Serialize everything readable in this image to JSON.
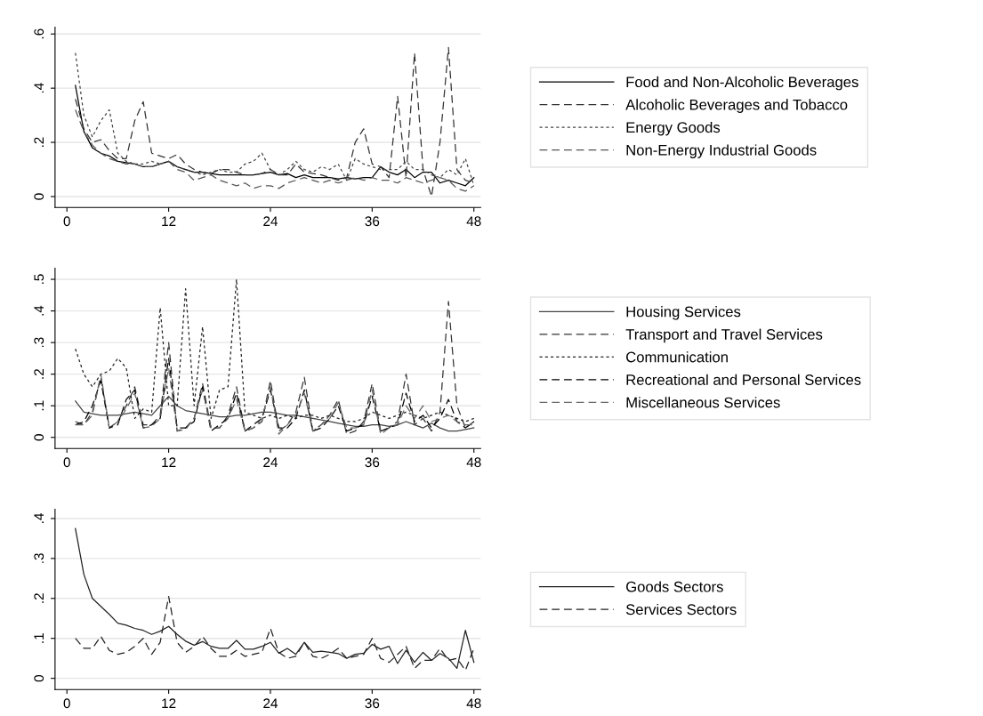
{
  "chart_data": [
    {
      "type": "line",
      "x": [
        1,
        2,
        3,
        4,
        5,
        6,
        7,
        8,
        9,
        10,
        11,
        12,
        13,
        14,
        15,
        16,
        17,
        18,
        19,
        20,
        21,
        22,
        23,
        24,
        25,
        26,
        27,
        28,
        29,
        30,
        31,
        32,
        33,
        34,
        35,
        36,
        37,
        38,
        39,
        40,
        41,
        42,
        43,
        44,
        45,
        46,
        47,
        48
      ],
      "xlim": [
        -1.4,
        48.8
      ],
      "xticks": [
        0,
        12,
        24,
        36,
        48
      ],
      "ylim": [
        -0.04,
        0.625
      ],
      "yticks": [
        {
          "value": 0,
          "label": "0"
        },
        {
          "value": 0.2,
          "label": ".2"
        },
        {
          "value": 0.4,
          "label": ".4"
        },
        {
          "value": 0.6,
          "label": ".6"
        }
      ],
      "grid": "y",
      "legend": "right",
      "series": [
        {
          "name": "Food and Non-Alcoholic Beverages",
          "color": "#000000",
          "line_style": "solid",
          "values": [
            0.41,
            0.24,
            0.18,
            0.16,
            0.15,
            0.13,
            0.125,
            0.12,
            0.11,
            0.11,
            0.12,
            0.13,
            0.11,
            0.1,
            0.09,
            0.09,
            0.085,
            0.08,
            0.08,
            0.08,
            0.08,
            0.08,
            0.085,
            0.09,
            0.08,
            0.085,
            0.07,
            0.08,
            0.07,
            0.07,
            0.07,
            0.065,
            0.07,
            0.065,
            0.07,
            0.07,
            0.11,
            0.09,
            0.08,
            0.1,
            0.07,
            0.09,
            0.09,
            0.05,
            0.06,
            0.05,
            0.04,
            0.07
          ]
        },
        {
          "name": "Alcoholic Beverages and Tobacco",
          "color": "#333333",
          "line_style": "dashed",
          "values": [
            0.36,
            0.25,
            0.2,
            0.21,
            0.17,
            0.14,
            0.14,
            0.28,
            0.35,
            0.16,
            0.15,
            0.14,
            0.155,
            0.12,
            0.1,
            0.09,
            0.085,
            0.1,
            0.1,
            0.09,
            0.08,
            0.08,
            0.085,
            0.1,
            0.08,
            0.08,
            0.12,
            0.09,
            0.085,
            0.08,
            0.07,
            0.06,
            0.07,
            0.2,
            0.25,
            0.12,
            0.11,
            0.07,
            0.37,
            0.07,
            0.53,
            0.1,
            0.0,
            0.2,
            0.55,
            0.1,
            0.06,
            0.05
          ]
        },
        {
          "name": "Energy Goods",
          "color": "#444444",
          "line_style": "dotted",
          "values": [
            0.53,
            0.3,
            0.22,
            0.28,
            0.32,
            0.16,
            0.13,
            0.12,
            0.12,
            0.13,
            0.12,
            0.13,
            0.11,
            0.1,
            0.09,
            0.08,
            0.09,
            0.1,
            0.09,
            0.09,
            0.12,
            0.13,
            0.16,
            0.1,
            0.08,
            0.1,
            0.13,
            0.1,
            0.09,
            0.11,
            0.1,
            0.12,
            0.06,
            0.14,
            0.12,
            0.11,
            0.1,
            0.1,
            0.1,
            0.13,
            0.1,
            0.1,
            0.08,
            0.07,
            0.1,
            0.08,
            0.14,
            0.04
          ]
        },
        {
          "name": "Non-Energy Industrial Goods",
          "color": "#555555",
          "line_style": "dashed",
          "values": [
            0.32,
            0.24,
            0.19,
            0.16,
            0.14,
            0.13,
            0.12,
            0.12,
            0.11,
            0.11,
            0.12,
            0.13,
            0.1,
            0.09,
            0.06,
            0.07,
            0.08,
            0.06,
            0.05,
            0.04,
            0.05,
            0.03,
            0.04,
            0.04,
            0.03,
            0.05,
            0.06,
            0.07,
            0.06,
            0.05,
            0.06,
            0.05,
            0.06,
            0.07,
            0.06,
            0.07,
            0.06,
            0.06,
            0.05,
            0.07,
            0.06,
            0.05,
            0.06,
            0.07,
            0.06,
            0.03,
            0.02,
            0.04
          ]
        }
      ]
    },
    {
      "type": "line",
      "x": [
        1,
        2,
        3,
        4,
        5,
        6,
        7,
        8,
        9,
        10,
        11,
        12,
        13,
        14,
        15,
        16,
        17,
        18,
        19,
        20,
        21,
        22,
        23,
        24,
        25,
        26,
        27,
        28,
        29,
        30,
        31,
        32,
        33,
        34,
        35,
        36,
        37,
        38,
        39,
        40,
        41,
        42,
        43,
        44,
        45,
        46,
        47,
        48
      ],
      "xlim": [
        -1.4,
        48.8
      ],
      "xticks": [
        0,
        12,
        24,
        36,
        48
      ],
      "ylim": [
        -0.035,
        0.535
      ],
      "yticks": [
        {
          "value": 0,
          "label": "0"
        },
        {
          "value": 0.1,
          "label": ".1"
        },
        {
          "value": 0.2,
          "label": ".2"
        },
        {
          "value": 0.3,
          "label": ".3"
        },
        {
          "value": 0.4,
          "label": ".4"
        },
        {
          "value": 0.5,
          "label": ".5"
        }
      ],
      "grid": "y",
      "legend": "right",
      "series": [
        {
          "name": "Housing Services",
          "color": "#444444",
          "line_style": "solid",
          "values": [
            0.115,
            0.08,
            0.075,
            0.07,
            0.07,
            0.07,
            0.075,
            0.08,
            0.075,
            0.07,
            0.1,
            0.13,
            0.1,
            0.085,
            0.08,
            0.075,
            0.07,
            0.065,
            0.065,
            0.07,
            0.07,
            0.075,
            0.08,
            0.08,
            0.075,
            0.07,
            0.07,
            0.065,
            0.06,
            0.055,
            0.05,
            0.045,
            0.04,
            0.035,
            0.035,
            0.04,
            0.04,
            0.035,
            0.04,
            0.05,
            0.04,
            0.03,
            0.045,
            0.03,
            0.02,
            0.02,
            0.025,
            0.03
          ]
        },
        {
          "name": "Transport and Travel Services",
          "color": "#333333",
          "line_style": "dashed",
          "values": [
            0.05,
            0.04,
            0.08,
            0.19,
            0.03,
            0.05,
            0.1,
            0.16,
            0.04,
            0.04,
            0.07,
            0.3,
            0.02,
            0.03,
            0.06,
            0.17,
            0.03,
            0.03,
            0.07,
            0.16,
            0.02,
            0.03,
            0.05,
            0.18,
            0.02,
            0.04,
            0.08,
            0.19,
            0.02,
            0.04,
            0.07,
            0.12,
            0.01,
            0.02,
            0.05,
            0.17,
            0.02,
            0.03,
            0.05,
            0.2,
            0.04,
            0.06,
            0.02,
            0.08,
            0.43,
            0.1,
            0.03,
            0.05
          ]
        },
        {
          "name": "Communication",
          "color": "#222222",
          "line_style": "dotted",
          "values": [
            0.28,
            0.2,
            0.16,
            0.2,
            0.21,
            0.25,
            0.22,
            0.06,
            0.09,
            0.08,
            0.41,
            0.1,
            0.1,
            0.47,
            0.1,
            0.35,
            0.06,
            0.15,
            0.16,
            0.5,
            0.08,
            0.07,
            0.06,
            0.07,
            0.06,
            0.07,
            0.06,
            0.07,
            0.07,
            0.06,
            0.07,
            0.06,
            0.05,
            0.05,
            0.06,
            0.08,
            0.07,
            0.06,
            0.07,
            0.08,
            0.07,
            0.06,
            0.07,
            0.08,
            0.07,
            0.06,
            0.05,
            0.06
          ]
        },
        {
          "name": "Recreational and Personal Services",
          "color": "#000000",
          "line_style": "dashed",
          "values": [
            0.04,
            0.05,
            0.1,
            0.18,
            0.03,
            0.04,
            0.12,
            0.15,
            0.03,
            0.04,
            0.06,
            0.25,
            0.03,
            0.03,
            0.05,
            0.16,
            0.02,
            0.04,
            0.06,
            0.14,
            0.02,
            0.04,
            0.06,
            0.15,
            0.03,
            0.03,
            0.06,
            0.15,
            0.02,
            0.03,
            0.06,
            0.1,
            0.02,
            0.03,
            0.04,
            0.13,
            0.02,
            0.03,
            0.04,
            0.14,
            0.05,
            0.07,
            0.03,
            0.06,
            0.12,
            0.05,
            0.03,
            0.05
          ]
        },
        {
          "name": "Miscellaneous Services",
          "color": "#666666",
          "line_style": "dashed",
          "values": [
            0.04,
            0.04,
            0.07,
            0.2,
            0.03,
            0.05,
            0.09,
            0.14,
            0.03,
            0.035,
            0.06,
            0.22,
            0.02,
            0.025,
            0.06,
            0.15,
            0.03,
            0.03,
            0.06,
            0.12,
            0.02,
            0.03,
            0.06,
            0.16,
            0.01,
            0.04,
            0.07,
            0.14,
            0.02,
            0.04,
            0.06,
            0.11,
            0.03,
            0.03,
            0.04,
            0.15,
            0.01,
            0.03,
            0.04,
            0.1,
            0.06,
            0.1,
            0.05,
            0.06,
            0.07,
            0.05,
            0.04,
            0.04
          ]
        }
      ]
    },
    {
      "type": "line",
      "x": [
        1,
        2,
        3,
        4,
        5,
        6,
        7,
        8,
        9,
        10,
        11,
        12,
        13,
        14,
        15,
        16,
        17,
        18,
        19,
        20,
        21,
        22,
        23,
        24,
        25,
        26,
        27,
        28,
        29,
        30,
        31,
        32,
        33,
        34,
        35,
        36,
        37,
        38,
        39,
        40,
        41,
        42,
        43,
        44,
        45,
        46,
        47,
        48
      ],
      "xlim": [
        -1.4,
        48.8
      ],
      "xticks": [
        0,
        12,
        24,
        36,
        48
      ],
      "ylim": [
        -0.028,
        0.423
      ],
      "yticks": [
        {
          "value": 0,
          "label": "0"
        },
        {
          "value": 0.1,
          "label": ".1"
        },
        {
          "value": 0.2,
          "label": ".2"
        },
        {
          "value": 0.3,
          "label": ".3"
        },
        {
          "value": 0.4,
          "label": ".4"
        }
      ],
      "grid": "y",
      "legend": "right",
      "series": [
        {
          "name": "Goods Sectors",
          "color": "#222222",
          "line_style": "solid",
          "values": [
            0.375,
            0.26,
            0.2,
            0.18,
            0.16,
            0.138,
            0.133,
            0.125,
            0.12,
            0.11,
            0.118,
            0.13,
            0.11,
            0.093,
            0.083,
            0.092,
            0.08,
            0.075,
            0.075,
            0.095,
            0.073,
            0.073,
            0.08,
            0.09,
            0.063,
            0.075,
            0.06,
            0.09,
            0.065,
            0.068,
            0.065,
            0.062,
            0.05,
            0.06,
            0.063,
            0.085,
            0.073,
            0.08,
            0.037,
            0.07,
            0.04,
            0.065,
            0.045,
            0.062,
            0.05,
            0.025,
            0.12,
            0.04
          ]
        },
        {
          "name": "Services Sectors",
          "color": "#222222",
          "line_style": "dashed",
          "values": [
            0.1,
            0.075,
            0.075,
            0.105,
            0.07,
            0.06,
            0.065,
            0.08,
            0.1,
            0.06,
            0.09,
            0.205,
            0.09,
            0.065,
            0.08,
            0.105,
            0.075,
            0.055,
            0.055,
            0.07,
            0.055,
            0.06,
            0.065,
            0.125,
            0.065,
            0.05,
            0.055,
            0.09,
            0.055,
            0.05,
            0.06,
            0.075,
            0.05,
            0.055,
            0.06,
            0.1,
            0.05,
            0.04,
            0.06,
            0.08,
            0.025,
            0.045,
            0.045,
            0.075,
            0.045,
            0.05,
            0.02,
            0.075
          ]
        }
      ]
    }
  ]
}
